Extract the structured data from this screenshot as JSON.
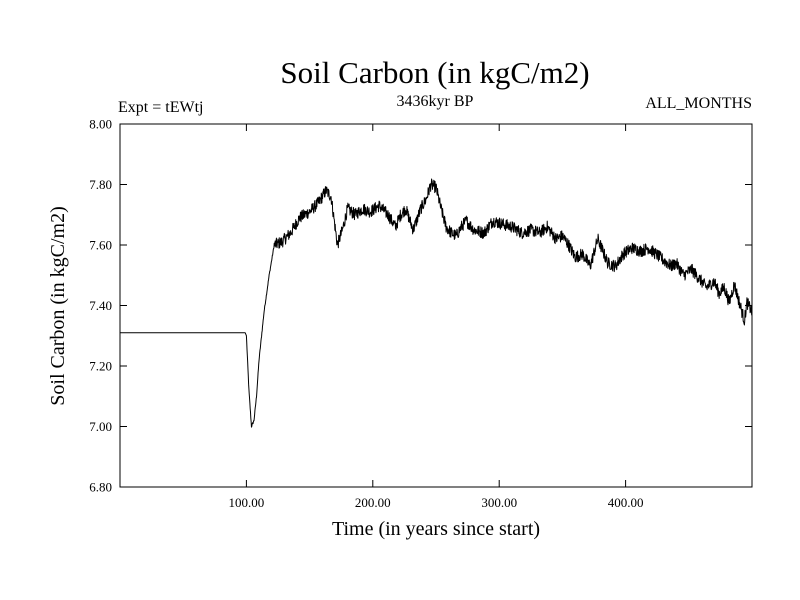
{
  "chart_data": {
    "type": "line",
    "title": "Soil Carbon (in kgC/m2)",
    "subtitle_left": "Expt = tEWtj",
    "subtitle_center": "3436kyr BP",
    "subtitle_right": "ALL_MONTHS",
    "xlabel": "Time (in years since start)",
    "ylabel": "Soil Carbon (in kgC/m2)",
    "xlim": [
      0,
      500
    ],
    "ylim": [
      6.8,
      8.0
    ],
    "x_ticks": [
      100,
      200,
      300,
      400
    ],
    "x_tick_labels": [
      "100.00",
      "200.00",
      "300.00",
      "400.00"
    ],
    "y_ticks": [
      6.8,
      7.0,
      7.2,
      7.4,
      7.6,
      7.8,
      8.0
    ],
    "y_tick_labels": [
      "6.80",
      "7.00",
      "7.20",
      "7.40",
      "7.60",
      "7.80",
      "8.00"
    ],
    "grid": false,
    "series": [
      {
        "name": "Soil Carbon",
        "color": "#000000",
        "noise_amplitude": 0.02,
        "noise_start_x": 122,
        "x": [
          0,
          99,
          100,
          102,
          104,
          106,
          108,
          110,
          114,
          118,
          122,
          128,
          135,
          142,
          150,
          157,
          163,
          167,
          172,
          176,
          180,
          186,
          192,
          198,
          205,
          212,
          218,
          222,
          226,
          232,
          238,
          242,
          246,
          250,
          254,
          258,
          262,
          266,
          270,
          274,
          280,
          288,
          295,
          302,
          310,
          318,
          325,
          332,
          338,
          345,
          350,
          355,
          360,
          366,
          372,
          378,
          382,
          386,
          392,
          398,
          405,
          412,
          418,
          424,
          430,
          436,
          440,
          446,
          452,
          458,
          464,
          470,
          474,
          478,
          482,
          486,
          490,
          494,
          496,
          500
        ],
        "y": [
          7.31,
          7.31,
          7.3,
          7.12,
          7.0,
          7.02,
          7.1,
          7.22,
          7.38,
          7.5,
          7.6,
          7.61,
          7.64,
          7.69,
          7.71,
          7.74,
          7.78,
          7.76,
          7.6,
          7.65,
          7.72,
          7.7,
          7.72,
          7.71,
          7.73,
          7.7,
          7.66,
          7.7,
          7.72,
          7.65,
          7.72,
          7.75,
          7.8,
          7.79,
          7.72,
          7.66,
          7.64,
          7.63,
          7.66,
          7.68,
          7.65,
          7.64,
          7.68,
          7.67,
          7.66,
          7.64,
          7.65,
          7.64,
          7.66,
          7.62,
          7.63,
          7.6,
          7.56,
          7.57,
          7.53,
          7.62,
          7.58,
          7.54,
          7.53,
          7.57,
          7.59,
          7.58,
          7.59,
          7.57,
          7.55,
          7.53,
          7.54,
          7.5,
          7.52,
          7.49,
          7.46,
          7.48,
          7.44,
          7.46,
          7.41,
          7.47,
          7.41,
          7.35,
          7.41,
          7.38
        ]
      }
    ]
  }
}
